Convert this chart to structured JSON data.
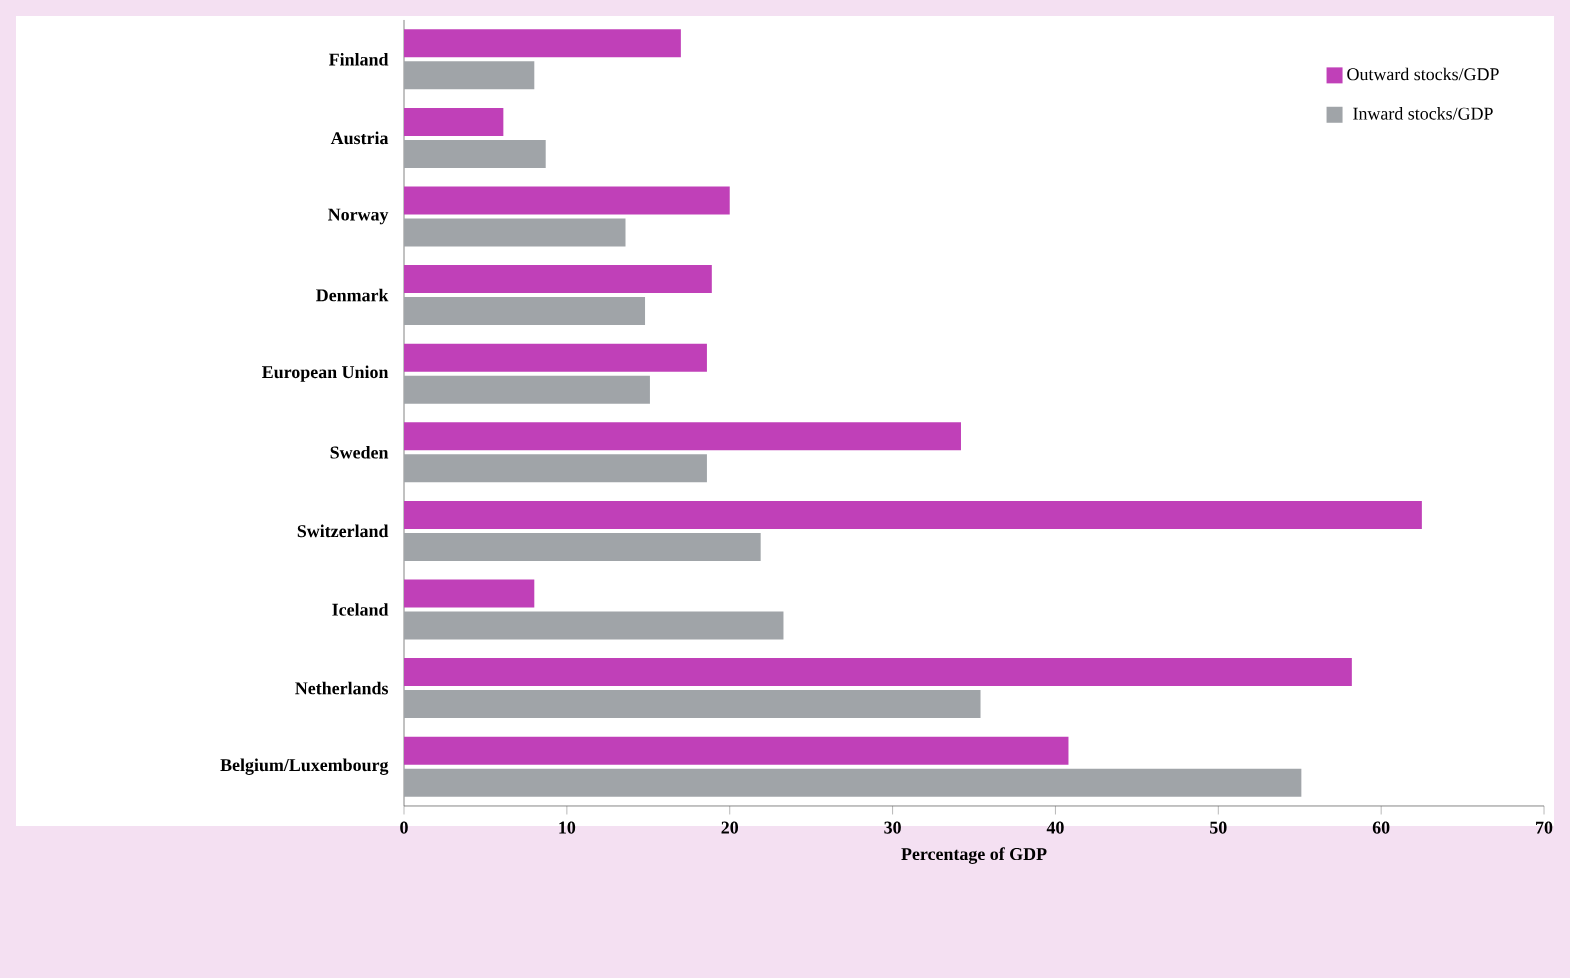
{
  "chart_data": {
    "type": "bar",
    "orientation": "horizontal",
    "xlabel": "Percentage of GDP",
    "categories": [
      "Finland",
      "Austria",
      "Norway",
      "Denmark",
      "European Union",
      "Sweden",
      "Switzerland",
      "Iceland",
      "Netherlands",
      "Belgium/Luxembourg"
    ],
    "series": [
      {
        "name": "Outward stocks/GDP",
        "color": "#c040b8",
        "values": [
          17.0,
          6.1,
          20.0,
          18.9,
          18.6,
          34.2,
          62.5,
          8.0,
          58.2,
          40.8
        ]
      },
      {
        "name": "Inward stocks/GDP",
        "color": "#a0a4a8",
        "values": [
          8.0,
          8.7,
          13.6,
          14.8,
          15.1,
          18.6,
          21.9,
          23.3,
          35.4,
          55.1
        ]
      }
    ],
    "xlim": [
      0,
      70
    ],
    "xticks": [
      0,
      10,
      20,
      30,
      40,
      50,
      60,
      70
    ],
    "legend": "top right",
    "grid": false
  }
}
